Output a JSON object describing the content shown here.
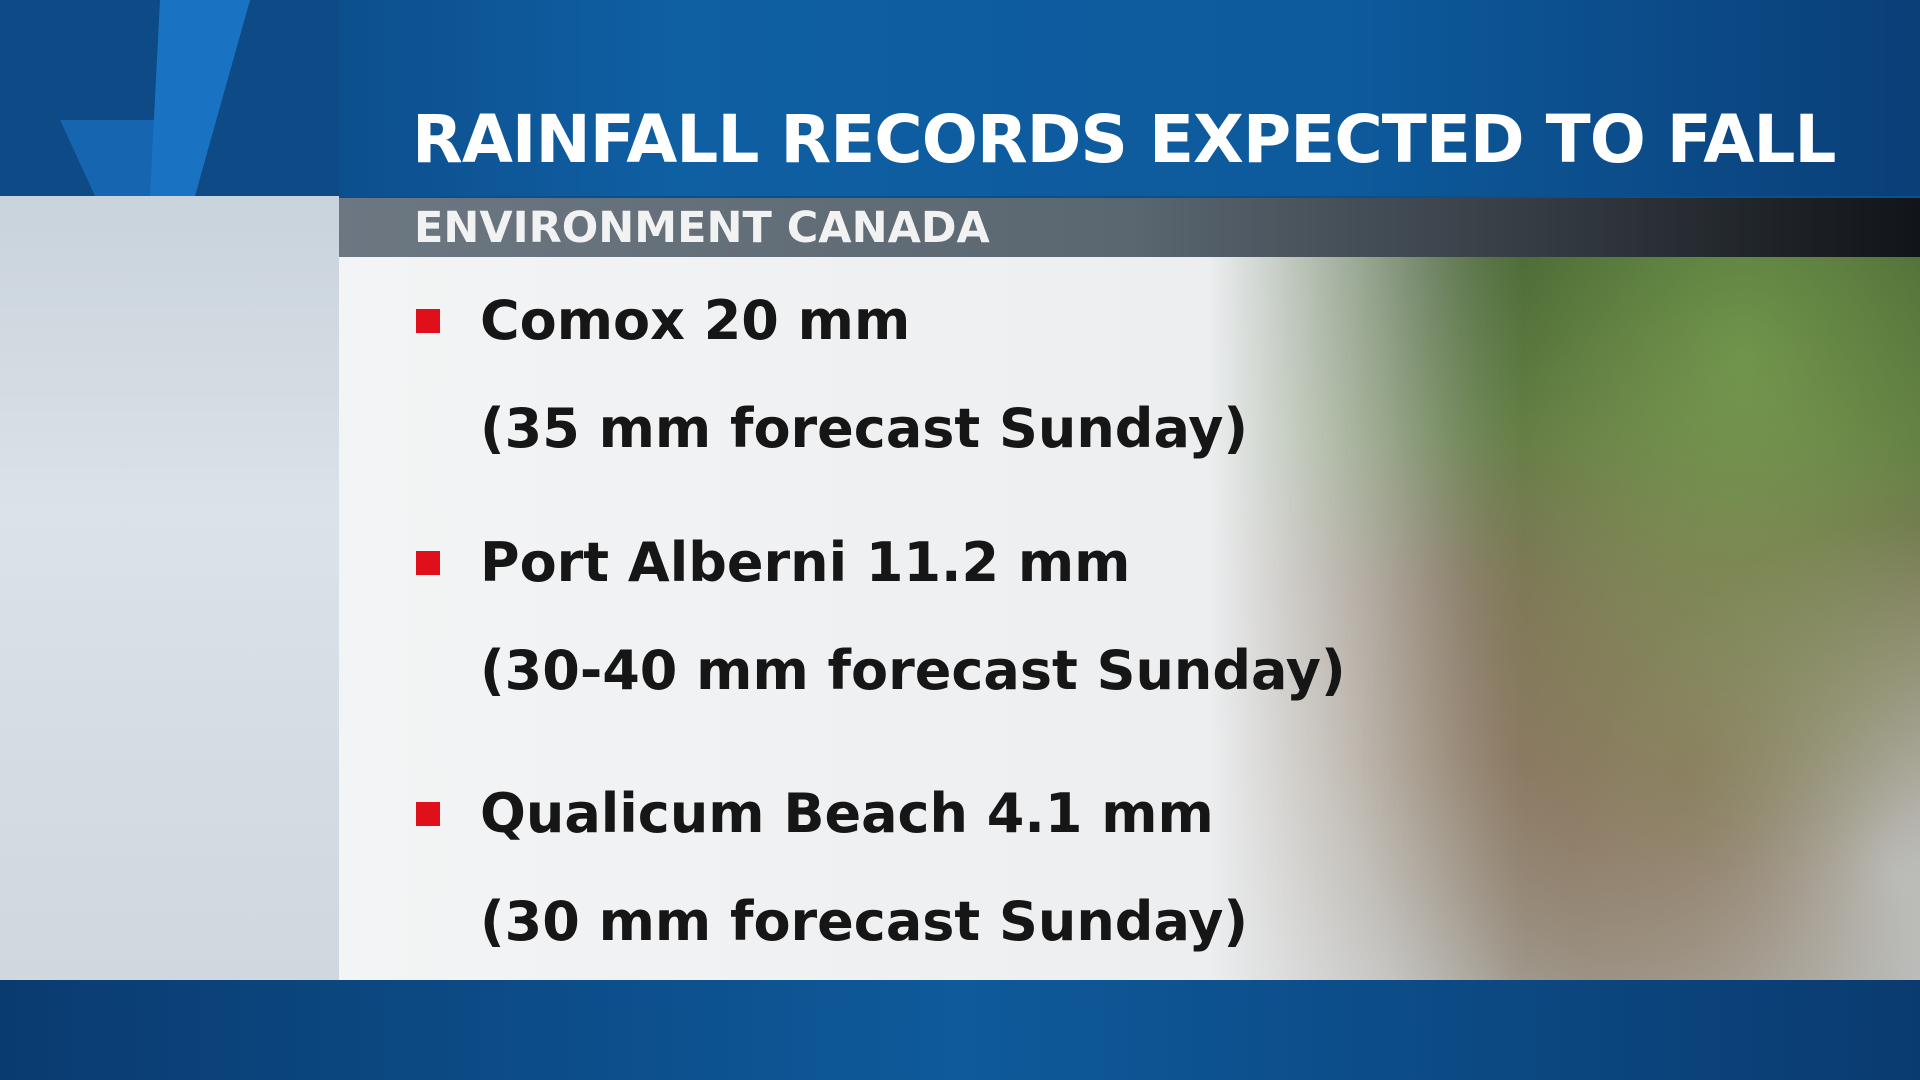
{
  "header": {
    "title": "RAINFALL RECORDS EXPECTED TO FALL",
    "subtitle": "ENVIRONMENT CANADA"
  },
  "items": [
    {
      "line": "Comox 20 mm",
      "forecast": "(35 mm forecast Sunday)"
    },
    {
      "line": "Port Alberni 11.2 mm",
      "forecast": "(30-40 mm forecast Sunday)"
    },
    {
      "line": "Qualicum Beach 4.1 mm",
      "forecast": "(30 mm forecast Sunday)"
    }
  ]
}
